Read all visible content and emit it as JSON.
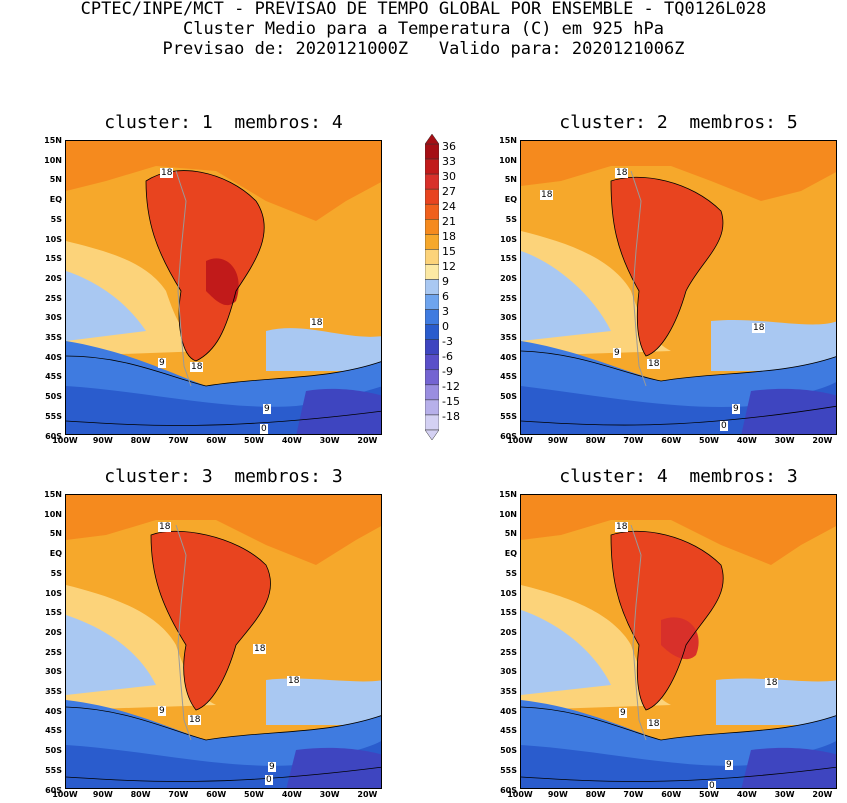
{
  "header": {
    "line1": "CPTEC/INPE/MCT - PREVISAO DE TEMPO GLOBAL POR ENSEMBLE - TQ0126L028",
    "line2": "Cluster Medio para a Temperatura (C) em 925 hPa",
    "line3": "Previsao de: 2020121000Z   Valido para: 2020121006Z"
  },
  "panels": [
    {
      "title": "cluster: 1  membros: 4"
    },
    {
      "title": "cluster: 2  membros: 5"
    },
    {
      "title": "cluster: 3  membros: 3"
    },
    {
      "title": "cluster: 4  membros: 3"
    }
  ],
  "lat_labels": [
    "15N",
    "10N",
    "5N",
    "EQ",
    "5S",
    "10S",
    "15S",
    "20S",
    "25S",
    "30S",
    "35S",
    "40S",
    "45S",
    "50S",
    "55S",
    "60S"
  ],
  "lon_labels": [
    "100W",
    "90W",
    "80W",
    "70W",
    "60W",
    "50W",
    "40W",
    "30W",
    "20W"
  ],
  "colorbar": {
    "levels": [
      "36",
      "33",
      "30",
      "27",
      "24",
      "21",
      "18",
      "15",
      "12",
      "9",
      "6",
      "3",
      "0",
      "-3",
      "-6",
      "-9",
      "-12",
      "-15",
      "-18"
    ],
    "colors": [
      "#a50f15",
      "#c11a1a",
      "#d8302a",
      "#e8441f",
      "#f0601c",
      "#f58a1e",
      "#f6a82b",
      "#fcd37a",
      "#fce9a4",
      "#a9c8f2",
      "#6ea4ee",
      "#3f7be0",
      "#2a5ccd",
      "#3e45c0",
      "#5a4fc9",
      "#7464d2",
      "#9a8ee0",
      "#b7b0ea",
      "#d4d1f3"
    ]
  },
  "contour_labels": [
    "18",
    "9",
    "0"
  ]
}
